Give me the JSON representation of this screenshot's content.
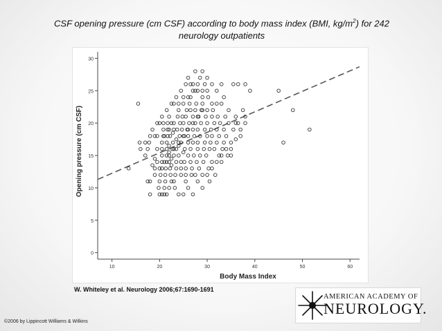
{
  "slide": {
    "title_part1": "CSF opening pressure (cm CSF) according to body mass index (BMI, kg/m",
    "title_sup": "2",
    "title_part2": ") for 242",
    "title_line2": "neurology outpatients",
    "citation": "W. Whiteley et al. Neurology 2006;67:1690-1691",
    "copyright": "©2006 by Lippincott Williams & Wilkins",
    "logo_line1": "AMERICAN ACADEMY OF",
    "logo_line2": "NEUROLOGY."
  },
  "chart_data": {
    "type": "scatter",
    "xlabel": "Body Mass Index",
    "ylabel": "Opening pressure (cm CSF)",
    "xlim": [
      7,
      62
    ],
    "ylim": [
      -1,
      31
    ],
    "xticks": [
      "10",
      "20",
      "30",
      "40",
      "50",
      "60"
    ],
    "yticks": [
      "0",
      "5",
      "10",
      "15",
      "20",
      "25",
      "30"
    ],
    "marker": "open-circle",
    "colors": {
      "points": "#333333",
      "trend": "#555555",
      "axis": "#444444"
    },
    "trendline": {
      "style": "dashed",
      "x": [
        7,
        62
      ],
      "y": [
        11.3,
        28.7
      ]
    },
    "points": [
      [
        13.5,
        13
      ],
      [
        15.5,
        23
      ],
      [
        15.8,
        17
      ],
      [
        17,
        15
      ],
      [
        17.5,
        16
      ],
      [
        17.8,
        17
      ],
      [
        17.5,
        11
      ],
      [
        18,
        11
      ],
      [
        18,
        9
      ],
      [
        18.5,
        13.5
      ],
      [
        19,
        12
      ],
      [
        19,
        13
      ],
      [
        19,
        14.5
      ],
      [
        19.5,
        14
      ],
      [
        19.5,
        16
      ],
      [
        19.5,
        18
      ],
      [
        19.8,
        10
      ],
      [
        20,
        9
      ],
      [
        20,
        11
      ],
      [
        20.2,
        12
      ],
      [
        20.5,
        13
      ],
      [
        20.5,
        14
      ],
      [
        20.5,
        15
      ],
      [
        20.5,
        16
      ],
      [
        20.5,
        17
      ],
      [
        20.8,
        18
      ],
      [
        20.8,
        19
      ],
      [
        20.8,
        20
      ],
      [
        20.5,
        9
      ],
      [
        21,
        9
      ],
      [
        21,
        10
      ],
      [
        21.2,
        11
      ],
      [
        21.2,
        12
      ],
      [
        21.3,
        13
      ],
      [
        21.5,
        14
      ],
      [
        21.5,
        15
      ],
      [
        21.5,
        16
      ],
      [
        21.5,
        17
      ],
      [
        21.7,
        18
      ],
      [
        21.7,
        19
      ],
      [
        21.7,
        20
      ],
      [
        22,
        21
      ],
      [
        22,
        14
      ],
      [
        22,
        15.5
      ],
      [
        22,
        16.5
      ],
      [
        22.2,
        13
      ],
      [
        22.2,
        18
      ],
      [
        22.3,
        12
      ],
      [
        22.5,
        11
      ],
      [
        22.5,
        13.5
      ],
      [
        22.5,
        14.5
      ],
      [
        22.7,
        16
      ],
      [
        22.8,
        17
      ],
      [
        22.8,
        18.5
      ],
      [
        23,
        19
      ],
      [
        23,
        20
      ],
      [
        23,
        15
      ],
      [
        23.2,
        10
      ],
      [
        23.3,
        12
      ],
      [
        23.5,
        13
      ],
      [
        23.5,
        14
      ],
      [
        23.5,
        16
      ],
      [
        23.5,
        17.5
      ],
      [
        23.7,
        19
      ],
      [
        23.8,
        21
      ],
      [
        24,
        22
      ],
      [
        24,
        15
      ],
      [
        24,
        16.5
      ],
      [
        24.2,
        18
      ],
      [
        24.3,
        20
      ],
      [
        24.5,
        12
      ],
      [
        24.5,
        13
      ],
      [
        24.5,
        14
      ],
      [
        24.5,
        17
      ],
      [
        24.7,
        19
      ],
      [
        24.8,
        21
      ],
      [
        25,
        23
      ],
      [
        25,
        20
      ],
      [
        25,
        15.5
      ],
      [
        25.2,
        14
      ],
      [
        25.2,
        18
      ],
      [
        25.3,
        16
      ],
      [
        25.5,
        13
      ],
      [
        25.5,
        12
      ],
      [
        25.5,
        11
      ],
      [
        25.5,
        21
      ],
      [
        25.7,
        22
      ],
      [
        25.8,
        19
      ],
      [
        26,
        17
      ],
      [
        26,
        15
      ],
      [
        26,
        18
      ],
      [
        26.2,
        20
      ],
      [
        26.3,
        23
      ],
      [
        26.5,
        24
      ],
      [
        26.5,
        14
      ],
      [
        26.5,
        16
      ],
      [
        26.7,
        12
      ],
      [
        26.8,
        13
      ],
      [
        27,
        19
      ],
      [
        27,
        21
      ],
      [
        27,
        17
      ],
      [
        27,
        9
      ],
      [
        27.2,
        15
      ],
      [
        27.3,
        18
      ],
      [
        27.5,
        20
      ],
      [
        27.5,
        22
      ],
      [
        27.5,
        25
      ],
      [
        27.7,
        23
      ],
      [
        27.8,
        14
      ],
      [
        28,
        16
      ],
      [
        28,
        17
      ],
      [
        28,
        19
      ],
      [
        28.2,
        21
      ],
      [
        28.3,
        13
      ],
      [
        28.5,
        15
      ],
      [
        28.5,
        18
      ],
      [
        28.5,
        27
      ],
      [
        28.7,
        20
      ],
      [
        28.8,
        22
      ],
      [
        29,
        23
      ],
      [
        29,
        24
      ],
      [
        29,
        12
      ],
      [
        29.2,
        14
      ],
      [
        29.3,
        16
      ],
      [
        29.5,
        17
      ],
      [
        29.5,
        19
      ],
      [
        29.7,
        21
      ],
      [
        29.8,
        15
      ],
      [
        30,
        18
      ],
      [
        30,
        20
      ],
      [
        30,
        22
      ],
      [
        30.2,
        24
      ],
      [
        30.3,
        13
      ],
      [
        30.5,
        16
      ],
      [
        30.5,
        11
      ],
      [
        30.7,
        17
      ],
      [
        30.8,
        19
      ],
      [
        31,
        21
      ],
      [
        31,
        14
      ],
      [
        31,
        18
      ],
      [
        31.2,
        22
      ],
      [
        31.5,
        16
      ],
      [
        31.5,
        20
      ],
      [
        31.7,
        12
      ],
      [
        32,
        17
      ],
      [
        32,
        19
      ],
      [
        32.2,
        21
      ],
      [
        32.5,
        15
      ],
      [
        32.5,
        18
      ],
      [
        32.7,
        20
      ],
      [
        33,
        14
      ],
      [
        33,
        23
      ],
      [
        33.2,
        16
      ],
      [
        33.5,
        17
      ],
      [
        33.5,
        19
      ],
      [
        33.8,
        21
      ],
      [
        34,
        18
      ],
      [
        34.3,
        15
      ],
      [
        34.5,
        20
      ],
      [
        34.5,
        22
      ],
      [
        35,
        17
      ],
      [
        35,
        15
      ],
      [
        35.5,
        26
      ],
      [
        35.5,
        19
      ],
      [
        36,
        21
      ],
      [
        36,
        17.5
      ],
      [
        36.5,
        20
      ],
      [
        37,
        19
      ],
      [
        37.5,
        22
      ],
      [
        38,
        20
      ],
      [
        39,
        25
      ],
      [
        36.5,
        26
      ],
      [
        38,
        26
      ],
      [
        33,
        26
      ],
      [
        29.5,
        26
      ],
      [
        27,
        26
      ],
      [
        28,
        26
      ],
      [
        26.5,
        26
      ],
      [
        30,
        27
      ],
      [
        33.5,
        24
      ],
      [
        32,
        23
      ],
      [
        31,
        23
      ],
      [
        29,
        25
      ],
      [
        28,
        25
      ],
      [
        27,
        25
      ],
      [
        26,
        27
      ],
      [
        26,
        24
      ],
      [
        25,
        24
      ],
      [
        24,
        23
      ],
      [
        23,
        23
      ],
      [
        22.5,
        20
      ],
      [
        22,
        19
      ],
      [
        21,
        18
      ],
      [
        20,
        20
      ],
      [
        19,
        18
      ],
      [
        23,
        11
      ],
      [
        21.5,
        9
      ],
      [
        24,
        9
      ],
      [
        25,
        9
      ],
      [
        26,
        10
      ],
      [
        22,
        10
      ],
      [
        27.5,
        12
      ],
      [
        28,
        11
      ],
      [
        29,
        10
      ],
      [
        30,
        12
      ],
      [
        31,
        13
      ],
      [
        32,
        14
      ],
      [
        33,
        15
      ],
      [
        34,
        16
      ],
      [
        35,
        16
      ],
      [
        36,
        20
      ],
      [
        37,
        18
      ],
      [
        38,
        21
      ],
      [
        30,
        25
      ],
      [
        31,
        26
      ],
      [
        32,
        25
      ],
      [
        29,
        28
      ],
      [
        27.5,
        28
      ],
      [
        26.5,
        22
      ],
      [
        25.5,
        26
      ],
      [
        24.5,
        25
      ],
      [
        23.5,
        24
      ],
      [
        22.5,
        23
      ],
      [
        21.5,
        22
      ],
      [
        20.5,
        21
      ],
      [
        19.5,
        20
      ],
      [
        18.5,
        19
      ],
      [
        18,
        18
      ],
      [
        17,
        17
      ],
      [
        16,
        16
      ],
      [
        20,
        13
      ],
      [
        21,
        14
      ],
      [
        22,
        15
      ],
      [
        23,
        16
      ],
      [
        24,
        17
      ],
      [
        25,
        18
      ],
      [
        26,
        19
      ],
      [
        27,
        20
      ],
      [
        28,
        21
      ],
      [
        29,
        22
      ],
      [
        45,
        25
      ],
      [
        46,
        17
      ],
      [
        48,
        22
      ],
      [
        51.5,
        19
      ]
    ]
  }
}
